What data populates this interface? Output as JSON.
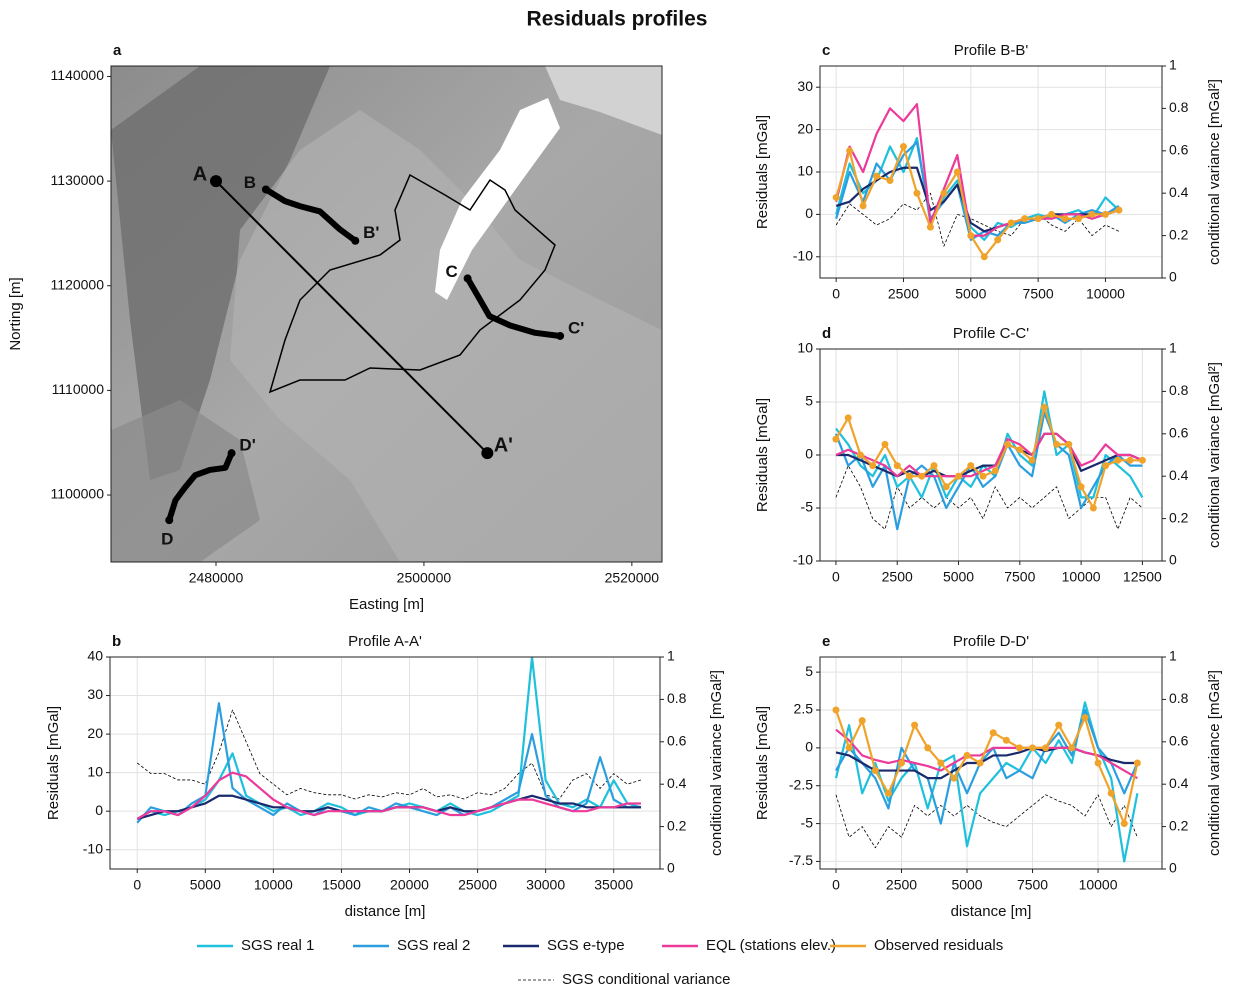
{
  "title": "Residuals profiles",
  "chart_data": [
    {
      "type": "map",
      "panel": "a",
      "xlabel": "Easting [m]",
      "ylabel": "Norting [m]",
      "xlim": [
        2469900,
        2522900
      ],
      "ylim": [
        1093600,
        1141000
      ],
      "xticks": [
        2480000,
        2500000,
        2520000
      ],
      "yticks": [
        1100000,
        1110000,
        1120000,
        1130000,
        1140000
      ],
      "grid": false,
      "color": "#000000",
      "profiles": [
        {
          "labels": [
            "A",
            "A'"
          ],
          "x": [
            2480000,
            2506100
          ],
          "y": [
            1130000,
            1104000
          ]
        },
        {
          "labels": [
            "B",
            "B'"
          ],
          "x": [
            2484800,
            2486600,
            2488100,
            2490000,
            2491900,
            2493400
          ],
          "y": [
            1129200,
            1128100,
            1127600,
            1127100,
            1125400,
            1124300
          ]
        },
        {
          "labels": [
            "C",
            "C'"
          ],
          "x": [
            2504200,
            2505200,
            2506300,
            2508300,
            2510700,
            2513100
          ],
          "y": [
            1120700,
            1119000,
            1117100,
            1116200,
            1115500,
            1115200
          ]
        },
        {
          "labels": [
            "D",
            "D'"
          ],
          "x": [
            2475500,
            2476100,
            2477000,
            2478000,
            2479400,
            2480900,
            2481500
          ],
          "y": [
            1097600,
            1099500,
            1100700,
            1101900,
            1102400,
            1102600,
            1104000
          ]
        }
      ]
    },
    {
      "type": "line",
      "panel": "b",
      "title": "Profile A-A'",
      "xlabel": "distance [m]",
      "ylabel": "Residuals [mGal]",
      "y2label": "conditional variance [mGal²]",
      "xlim": [
        -2000,
        38400
      ],
      "ylim": [
        -15,
        40
      ],
      "y2lim": [
        0,
        1
      ],
      "xticks": [
        0,
        5000,
        10000,
        15000,
        20000,
        25000,
        30000,
        35000
      ],
      "yticks": [
        -10,
        0,
        10,
        20,
        30,
        40
      ],
      "y2ticks": [
        0,
        0.2,
        0.4,
        0.6,
        0.8,
        1
      ],
      "grid": true,
      "x": [
        0,
        1000,
        2000,
        3000,
        4000,
        5000,
        6000,
        7000,
        8000,
        9000,
        10000,
        11000,
        12000,
        13000,
        14000,
        15000,
        16000,
        17000,
        18000,
        19000,
        20000,
        21000,
        22000,
        23000,
        24000,
        25000,
        26000,
        27000,
        28000,
        29000,
        30000,
        31000,
        32000,
        33000,
        34000,
        35000,
        36000,
        37000
      ],
      "series": [
        {
          "name": "SGS real 1",
          "color": "#1ec0dc",
          "values": [
            -2,
            0,
            -1,
            0,
            1,
            3,
            8,
            15,
            4,
            2,
            0,
            1,
            -1,
            0,
            2,
            1,
            -1,
            0,
            0,
            1,
            2,
            1,
            0,
            2,
            0,
            -1,
            0,
            2,
            4,
            40,
            8,
            2,
            1,
            3,
            1,
            8,
            2,
            1
          ]
        },
        {
          "name": "SGS real 2",
          "color": "#2b9ee0",
          "values": [
            -3,
            1,
            0,
            -1,
            2,
            4,
            28,
            6,
            3,
            1,
            -1,
            2,
            0,
            -1,
            1,
            0,
            -1,
            1,
            0,
            2,
            1,
            0,
            -1,
            1,
            -1,
            0,
            1,
            3,
            5,
            20,
            4,
            1,
            0,
            2,
            14,
            3,
            1,
            1
          ]
        },
        {
          "name": "SGS e-type",
          "color": "#1a2a6c",
          "values": [
            -2,
            -1,
            0,
            0,
            1,
            2,
            4,
            4,
            3,
            2,
            1,
            1,
            0,
            0,
            1,
            0,
            0,
            0,
            0,
            1,
            1,
            1,
            0,
            1,
            0,
            0,
            1,
            2,
            3,
            4,
            3,
            2,
            2,
            1,
            1,
            1,
            1,
            1
          ]
        },
        {
          "name": "EQL (stations elev.)",
          "color": "#ec3a9a",
          "values": [
            -2,
            0,
            0,
            -1,
            1,
            4,
            8,
            10,
            9,
            6,
            3,
            1,
            0,
            -1,
            0,
            0,
            0,
            0,
            0,
            1,
            1,
            1,
            0,
            -1,
            -1,
            0,
            1,
            2,
            3,
            3,
            2,
            1,
            0,
            0,
            1,
            1,
            2,
            2
          ]
        },
        {
          "name": "SGS conditional variance",
          "color": "#000000",
          "dashed": true,
          "axis": "y2",
          "values": [
            0.5,
            0.45,
            0.45,
            0.42,
            0.42,
            0.4,
            0.55,
            0.75,
            0.6,
            0.45,
            0.4,
            0.35,
            0.38,
            0.36,
            0.35,
            0.35,
            0.33,
            0.35,
            0.34,
            0.36,
            0.35,
            0.38,
            0.34,
            0.35,
            0.33,
            0.36,
            0.35,
            0.38,
            0.45,
            0.5,
            0.35,
            0.33,
            0.42,
            0.45,
            0.38,
            0.45,
            0.4,
            0.42
          ]
        }
      ]
    },
    {
      "type": "line",
      "panel": "c",
      "title": "Profile B-B'",
      "xlabel": null,
      "ylabel": "Residuals [mGal]",
      "y2label": "conditional variance [mGal²]",
      "xlim": [
        -600,
        12100
      ],
      "ylim": [
        -15,
        35
      ],
      "y2lim": [
        0,
        1
      ],
      "xticks": [
        0,
        2500,
        5000,
        7500,
        10000
      ],
      "yticks": [
        -10,
        0,
        10,
        20,
        30
      ],
      "y2ticks": [
        0,
        0.2,
        0.4,
        0.6,
        0.8,
        1
      ],
      "grid": true,
      "x": [
        0,
        500,
        1000,
        1500,
        2000,
        2500,
        3000,
        3500,
        4000,
        4500,
        5000,
        5500,
        6000,
        6500,
        7000,
        7500,
        8000,
        8500,
        9000,
        9500,
        10000,
        10500
      ],
      "series": [
        {
          "name": "SGS real 1",
          "color": "#1ec0dc",
          "values": [
            0,
            12,
            5,
            8,
            16,
            10,
            18,
            -2,
            4,
            8,
            -3,
            -6,
            -2,
            -3,
            -1,
            0,
            -1,
            0,
            1,
            -1,
            4,
            1
          ]
        },
        {
          "name": "SGS real 2",
          "color": "#2b9ee0",
          "values": [
            -1,
            10,
            3,
            12,
            8,
            14,
            17,
            -1,
            3,
            7,
            -6,
            -4,
            -5,
            -2,
            -2,
            -1,
            0,
            -2,
            0,
            1,
            0,
            2
          ]
        },
        {
          "name": "SGS e-type",
          "color": "#1a2a6c",
          "values": [
            2,
            3,
            6,
            8,
            10,
            11,
            11,
            1,
            3,
            7,
            -2,
            -4,
            -3,
            -2,
            -1,
            -1,
            0,
            0,
            0,
            0,
            0,
            1
          ]
        },
        {
          "name": "EQL (stations elev.)",
          "color": "#ec3a9a",
          "values": [
            3,
            16,
            10,
            19,
            25,
            22,
            26,
            -2,
            6,
            14,
            -5,
            -5,
            -3,
            -2,
            -1,
            -1,
            -1,
            0,
            0,
            -1,
            0,
            1
          ]
        },
        {
          "name": "Observed residuals",
          "color": "#f0a32a",
          "markers": true,
          "values": [
            4,
            15,
            2,
            9,
            8,
            16,
            5,
            -3,
            5,
            10,
            -5,
            -10,
            -6,
            -2,
            -1,
            -1,
            0,
            -1,
            -1,
            0,
            0,
            1
          ]
        },
        {
          "name": "SGS conditional variance",
          "color": "#000000",
          "dashed": true,
          "axis": "y2",
          "values": [
            0.25,
            0.35,
            0.3,
            0.25,
            0.28,
            0.35,
            0.32,
            0.4,
            0.15,
            0.3,
            0.28,
            0.25,
            0.22,
            0.2,
            0.28,
            0.3,
            0.25,
            0.22,
            0.28,
            0.2,
            0.25,
            0.22
          ]
        }
      ]
    },
    {
      "type": "line",
      "panel": "d",
      "title": "Profile C-C'",
      "xlabel": null,
      "ylabel": "Residuals [mGal]",
      "y2label": "conditional variance [mGal²]",
      "xlim": [
        -650,
        13300
      ],
      "ylim": [
        -10,
        10
      ],
      "y2lim": [
        0,
        1
      ],
      "xticks": [
        0,
        2500,
        5000,
        7500,
        10000,
        12500
      ],
      "yticks": [
        -10,
        -5,
        0,
        5,
        10
      ],
      "y2ticks": [
        0,
        0.2,
        0.4,
        0.6,
        0.8,
        1
      ],
      "grid": true,
      "x": [
        0,
        500,
        1000,
        1500,
        2000,
        2500,
        3000,
        3500,
        4000,
        4500,
        5000,
        5500,
        6000,
        6500,
        7000,
        7500,
        8000,
        8500,
        9000,
        9500,
        10000,
        10500,
        11000,
        11500,
        12000,
        12500
      ],
      "series": [
        {
          "name": "SGS real 1",
          "color": "#1ec0dc",
          "values": [
            2.5,
            1,
            -1,
            -2,
            0,
            -3,
            -2,
            -4,
            -1,
            -4,
            -2,
            -3,
            -1,
            -2,
            2,
            0,
            -1,
            6,
            0,
            1,
            -4,
            -4,
            0,
            -1,
            -2,
            -4
          ]
        },
        {
          "name": "SGS real 2",
          "color": "#2b9ee0",
          "values": [
            2,
            -1,
            0,
            -3,
            -1,
            -7,
            -2,
            -1,
            -2,
            -5,
            -3,
            -1,
            -3,
            -2,
            1,
            -1,
            -2,
            4,
            1,
            0,
            -5,
            -3,
            -1,
            0,
            -1,
            -1
          ]
        },
        {
          "name": "SGS e-type",
          "color": "#1a2a6c",
          "values": [
            0,
            0,
            -0.5,
            -1,
            -1.5,
            -2,
            -1.5,
            -2,
            -1.5,
            -2,
            -2,
            -1.5,
            -1,
            -1,
            1,
            0.5,
            0,
            2,
            2,
            1,
            -1.5,
            -1,
            -0.5,
            0,
            0,
            -0.5
          ]
        },
        {
          "name": "EQL (stations elev.)",
          "color": "#ec3a9a",
          "values": [
            0,
            0.5,
            0,
            -0.5,
            -1,
            -2,
            -1,
            -2,
            -2,
            -2,
            -2,
            -2,
            -1.5,
            -1,
            1.5,
            1,
            0,
            2,
            2,
            1,
            -1,
            -0.5,
            1,
            0,
            0,
            -0.5
          ]
        },
        {
          "name": "Observed residuals",
          "color": "#f0a32a",
          "markers": true,
          "values": [
            1.5,
            3.5,
            0,
            -1,
            1,
            -1,
            -2,
            -2,
            -1,
            -3,
            -2,
            -1,
            -2,
            -1.5,
            1,
            0.5,
            -0.5,
            4.5,
            1,
            1,
            -3,
            -5,
            -1,
            -0.5,
            -0.5,
            -0.5
          ]
        },
        {
          "name": "SGS conditional variance",
          "color": "#000000",
          "dashed": true,
          "axis": "y2",
          "values": [
            0.3,
            0.45,
            0.35,
            0.2,
            0.15,
            0.35,
            0.25,
            0.3,
            0.25,
            0.3,
            0.25,
            0.3,
            0.2,
            0.35,
            0.25,
            0.3,
            0.25,
            0.3,
            0.35,
            0.2,
            0.25,
            0.3,
            0.3,
            0.15,
            0.3,
            0.25
          ]
        }
      ]
    },
    {
      "type": "line",
      "panel": "e",
      "title": "Profile D-D'",
      "xlabel": "distance [m]",
      "ylabel": "Residuals [mGal]",
      "y2label": "conditional variance [mGal²]",
      "xlim": [
        -610,
        12440
      ],
      "ylim": [
        -8,
        6
      ],
      "y2lim": [
        0,
        1
      ],
      "xticks": [
        0,
        2500,
        5000,
        7500,
        10000
      ],
      "yticks": [
        -7.5,
        -5,
        -2.5,
        0,
        2.5,
        5
      ],
      "y2ticks": [
        0,
        0.2,
        0.4,
        0.6,
        0.8,
        1
      ],
      "grid": true,
      "x": [
        0,
        500,
        1000,
        1500,
        2000,
        2500,
        3000,
        3500,
        4000,
        4500,
        5000,
        5500,
        6000,
        6500,
        7000,
        7500,
        8000,
        8500,
        9000,
        9500,
        10000,
        10500,
        11000,
        11500
      ],
      "series": [
        {
          "name": "SGS real 1",
          "color": "#1ec0dc",
          "values": [
            -2,
            1.5,
            -3,
            -1,
            -3.5,
            -2,
            -1,
            -4,
            -1,
            -0.5,
            -6.5,
            -3,
            -2,
            -1,
            -1.5,
            0,
            -1,
            0.5,
            -1,
            3,
            0,
            -2,
            -7.5,
            -3
          ]
        },
        {
          "name": "SGS real 2",
          "color": "#2b9ee0",
          "values": [
            -1.5,
            0,
            -1,
            -2,
            -4,
            0,
            -1.5,
            -2,
            -5,
            -1,
            -3,
            -1,
            0,
            -2,
            -1.5,
            -2,
            0,
            1,
            -0.5,
            2.5,
            0,
            -1,
            -3,
            -1
          ]
        },
        {
          "name": "SGS e-type",
          "color": "#1a2a6c",
          "values": [
            -0.3,
            -0.5,
            -1,
            -1.5,
            -1.5,
            -1.5,
            -1.5,
            -2,
            -2,
            -1.5,
            -1,
            -1,
            -0.5,
            -0.5,
            -0.3,
            0,
            -0.2,
            0,
            0,
            -0.3,
            -0.5,
            -0.8,
            -1,
            -1
          ]
        },
        {
          "name": "EQL (stations elev.)",
          "color": "#ec3a9a",
          "values": [
            1.2,
            0.5,
            -0.5,
            -0.8,
            -1,
            -0.8,
            -1,
            -1.2,
            -1.5,
            -1,
            -0.5,
            -0.5,
            0,
            0,
            0,
            0,
            0,
            0,
            0,
            -0.3,
            -0.5,
            -1,
            -1.5,
            -2
          ]
        },
        {
          "name": "Observed residuals",
          "color": "#f0a32a",
          "markers": true,
          "values": [
            2.5,
            0,
            1.8,
            -1.5,
            -3,
            -1,
            1.5,
            0,
            -1,
            -2,
            -0.5,
            -1,
            1,
            0.5,
            0,
            0,
            0,
            1.5,
            0,
            2,
            -1,
            -3,
            -5,
            -1
          ]
        },
        {
          "name": "SGS conditional variance",
          "color": "#000000",
          "dashed": true,
          "axis": "y2",
          "values": [
            0.35,
            0.15,
            0.2,
            0.1,
            0.2,
            0.15,
            0.3,
            0.25,
            0.3,
            0.25,
            0.3,
            0.25,
            0.22,
            0.2,
            0.25,
            0.3,
            0.35,
            0.32,
            0.3,
            0.25,
            0.35,
            0.2,
            0.3,
            0.15
          ]
        }
      ]
    }
  ]
}
